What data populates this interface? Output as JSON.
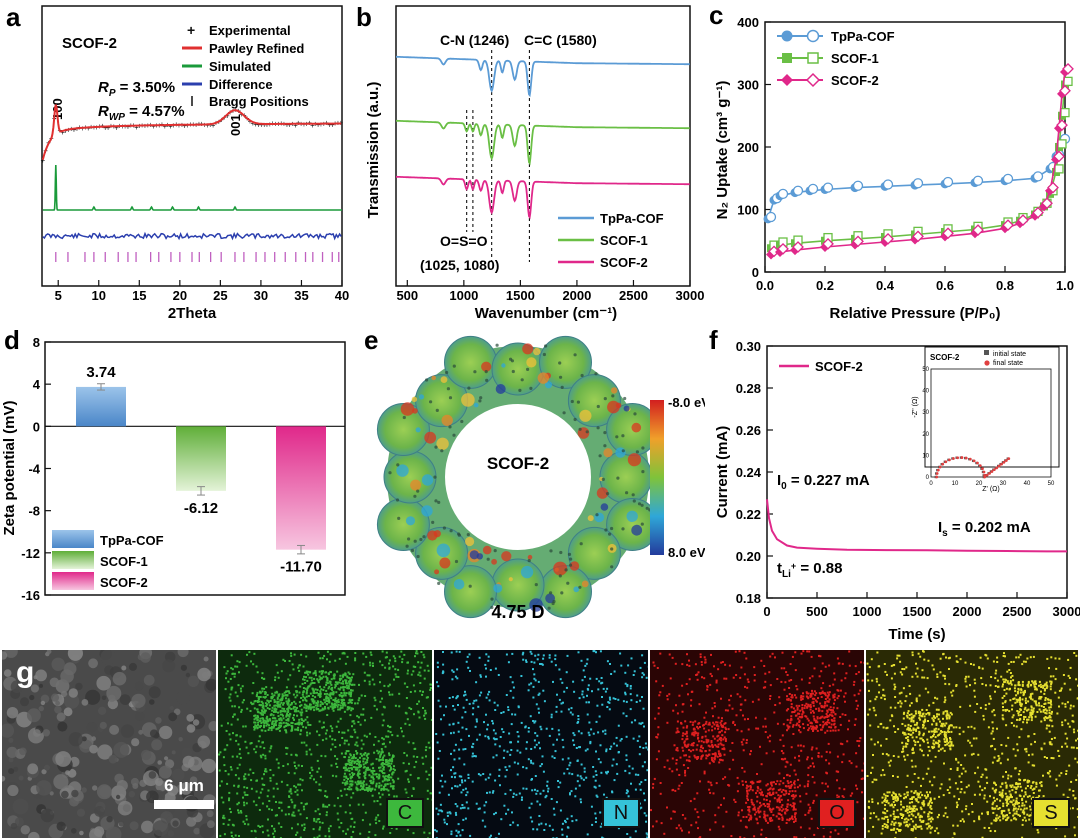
{
  "panel_labels": {
    "a": "a",
    "b": "b",
    "c": "c",
    "d": "d",
    "e": "e",
    "f": "f",
    "g": "g"
  },
  "colors": {
    "tppa": "#5b9bd5",
    "scof1": "#6abf45",
    "scof2": "#e0288a",
    "experimental": "#111111",
    "pawley": "#e03030",
    "simulated": "#1a9a3a",
    "difference": "#2b3fae",
    "bragg": "#c060c0",
    "eds_C": "#3db83d",
    "eds_N": "#35c3d8",
    "eds_O": "#e02020",
    "eds_S": "#e6e030"
  },
  "chart_data": [
    {
      "id": "a",
      "type": "line",
      "title": "SCOF-2",
      "xlabel": "2Theta",
      "ylabel": "",
      "xlim": [
        3,
        40
      ],
      "xticks": [
        "5",
        "10",
        "15",
        "20",
        "25",
        "30",
        "35",
        "40"
      ],
      "legend": [
        "Experimental",
        "Pawley Refined",
        "Simulated",
        "Difference",
        "Bragg Positions"
      ],
      "annotations": {
        "rp": "R_P = 3.50%",
        "rwp": "R_WP = 4.57%",
        "peak1": "100",
        "peak2": "001"
      },
      "rp_label": "R",
      "rp_sub": "P",
      "rp_val": " = 3.50%",
      "rwp_label": "R",
      "rwp_sub": "WP",
      "rwp_val": " = 4.57%",
      "peaks": [
        {
          "label": "100",
          "x": 4.7
        },
        {
          "label": "001",
          "x": 26.8
        }
      ],
      "bragg_positions": [
        4.7,
        6.2,
        8.3,
        9.4,
        10.8,
        12.4,
        13.6,
        14.6,
        16.4,
        17.4,
        18.9,
        20.0,
        21.5,
        22.4,
        23.8,
        25.1,
        26.8,
        27.9,
        29.4,
        30.5,
        31.7,
        33.0,
        34.3,
        35.5,
        36.4,
        37.6,
        38.8,
        39.6
      ]
    },
    {
      "id": "b",
      "type": "line",
      "xlabel": "Wavenumber (cm⁻¹)",
      "ylabel": "Transmission (a.u.)",
      "xlim": [
        400,
        3000
      ],
      "xticks": [
        "500",
        "1000",
        "1500",
        "2000",
        "2500",
        "3000"
      ],
      "series": [
        {
          "name": "TpPa-COF"
        },
        {
          "name": "SCOF-1"
        },
        {
          "name": "SCOF-2"
        }
      ],
      "annotations": {
        "cn": "C-N (1246)",
        "cc": "C=C (1580)",
        "oso": "O=S=O",
        "oso_pos": "(1025, 1080)"
      },
      "markers": [
        1025,
        1080,
        1246,
        1580
      ]
    },
    {
      "id": "c",
      "type": "scatter",
      "xlabel": "Relative Pressure (P/P₀)",
      "ylabel": "N₂ Uptake (cm³ g⁻¹)",
      "xlim": [
        0,
        1.0
      ],
      "ylim": [
        0,
        400
      ],
      "xticks": [
        "0.0",
        "0.2",
        "0.4",
        "0.6",
        "0.8",
        "1.0"
      ],
      "yticks": [
        "0",
        "100",
        "200",
        "300",
        "400"
      ],
      "series": [
        {
          "name": "TpPa-COF",
          "x": [
            0.01,
            0.03,
            0.05,
            0.1,
            0.15,
            0.2,
            0.3,
            0.4,
            0.5,
            0.6,
            0.7,
            0.8,
            0.9,
            0.95,
            0.97,
            0.99
          ],
          "y": [
            85,
            115,
            122,
            127,
            130,
            132,
            135,
            137,
            139,
            141,
            143,
            146,
            150,
            165,
            185,
            210
          ]
        },
        {
          "name": "SCOF-1",
          "x": [
            0.02,
            0.05,
            0.1,
            0.2,
            0.3,
            0.4,
            0.5,
            0.6,
            0.7,
            0.8,
            0.85,
            0.9,
            0.93,
            0.95,
            0.97,
            0.98,
            0.99,
            1.0
          ],
          "y": [
            38,
            43,
            46,
            50,
            53,
            56,
            60,
            64,
            68,
            75,
            82,
            92,
            105,
            125,
            160,
            200,
            250,
            300
          ]
        },
        {
          "name": "SCOF-2",
          "x": [
            0.02,
            0.05,
            0.1,
            0.2,
            0.3,
            0.4,
            0.5,
            0.6,
            0.7,
            0.8,
            0.85,
            0.9,
            0.93,
            0.95,
            0.97,
            0.98,
            0.99,
            1.0
          ],
          "y": [
            28,
            32,
            35,
            40,
            44,
            48,
            52,
            57,
            62,
            70,
            78,
            90,
            105,
            130,
            180,
            230,
            285,
            320
          ]
        }
      ]
    },
    {
      "id": "d",
      "type": "bar",
      "xlabel": "",
      "ylabel": "Zeta potential (mV)",
      "ylim": [
        -16,
        8
      ],
      "yticks": [
        "8",
        "4",
        "0",
        "-4",
        "-8",
        "-12",
        "-16"
      ],
      "categories": [
        "TpPa-COF",
        "SCOF-1",
        "SCOF-2"
      ],
      "values": [
        3.74,
        -6.12,
        -11.7
      ],
      "value_labels": [
        "3.74",
        "-6.12",
        "-11.70"
      ],
      "errors": [
        0.3,
        0.4,
        0.4
      ]
    },
    {
      "id": "e",
      "type": "heatmap",
      "title": "SCOF-2",
      "footer": "4.75 D",
      "colorbar": {
        "max_label": "-8.0  eV",
        "min_label": "8.0  eV"
      }
    },
    {
      "id": "f",
      "type": "line",
      "xlabel": "Time (s)",
      "ylabel": "Current (mA)",
      "xlim": [
        0,
        3000
      ],
      "ylim": [
        0.18,
        0.3
      ],
      "xticks": [
        "0",
        "500",
        "1000",
        "1500",
        "2000",
        "2500",
        "3000"
      ],
      "yticks": [
        "0.30",
        "0.28",
        "0.26",
        "0.24",
        "0.22",
        "0.20",
        "0.18"
      ],
      "series": [
        {
          "name": "SCOF-2",
          "x": [
            0,
            20,
            50,
            100,
            200,
            300,
            500,
            800,
            1200,
            1600,
            2000,
            2400,
            2800,
            3000
          ],
          "y": [
            0.227,
            0.218,
            0.212,
            0.208,
            0.205,
            0.204,
            0.2035,
            0.203,
            0.2028,
            0.2027,
            0.2025,
            0.2024,
            0.2022,
            0.2022
          ]
        }
      ],
      "annotations": {
        "i0": "I₀ = 0.227 mA",
        "is": "Iₛ = 0.202 mA",
        "tli": "t_Li⁺ = 0.88"
      },
      "i0_prefix": "I",
      "i0_sub": "0",
      "i0_val": " = 0.227 mA",
      "is_prefix": "I",
      "is_sub": "s",
      "is_val": " = 0.202 mA",
      "tli_prefix": "t",
      "tli_sub": "Li",
      "tli_sup": "+",
      "tli_val": " = 0.88",
      "inset": {
        "title": "SCOF-2",
        "xlabel": "Z' (Ω)",
        "ylabel": "-Z'' (Ω)",
        "xticks": [
          "0",
          "10",
          "20",
          "30",
          "40",
          "50"
        ],
        "yticks": [
          "0",
          "10",
          "20",
          "30",
          "40",
          "50"
        ],
        "legend": [
          "initial state",
          "final state"
        ]
      }
    }
  ],
  "g": {
    "scale_bar": "6 μm",
    "elements": [
      "C",
      "N",
      "O",
      "S"
    ]
  }
}
